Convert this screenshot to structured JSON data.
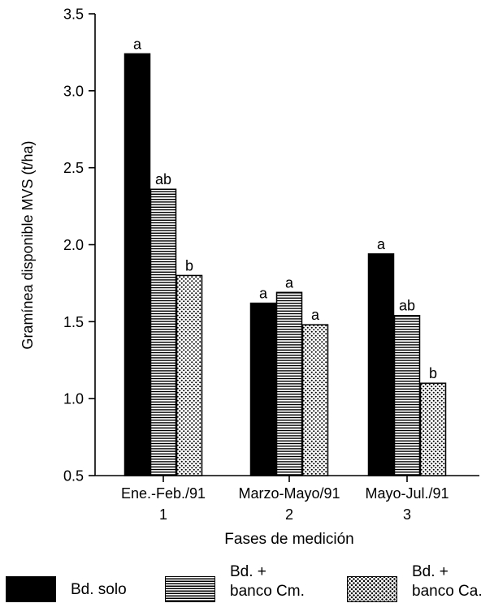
{
  "chart_data": {
    "type": "bar",
    "title": "",
    "ylabel": "Gramínea disponible MVS (t/ha)",
    "xlabel": "Fases de medición",
    "ylim": [
      0.5,
      3.5
    ],
    "yticks": [
      "0.5",
      "1.0",
      "1.5",
      "2.0",
      "2.5",
      "3.0",
      "3.5"
    ],
    "categories": [
      "Ene.-Feb./91",
      "Marzo-Mayo/91",
      "Mayo-Jul./91"
    ],
    "category_numbers": [
      "1",
      "2",
      "3"
    ],
    "series": [
      {
        "name": "Bd. solo",
        "pattern": "solid",
        "values": [
          3.24,
          1.62,
          1.94
        ],
        "letters": [
          "a",
          "a",
          "a"
        ]
      },
      {
        "name": "Bd. + banco Cm.",
        "pattern": "horizontal-lines",
        "values": [
          2.36,
          1.69,
          1.54
        ],
        "letters": [
          "ab",
          "a",
          "ab"
        ]
      },
      {
        "name": "Bd. + banco Ca.",
        "pattern": "dots",
        "values": [
          1.8,
          1.48,
          1.1
        ],
        "letters": [
          "b",
          "a",
          "b"
        ]
      }
    ],
    "grid": false,
    "legend_position": "bottom"
  },
  "legend": {
    "items": [
      {
        "line1": "Bd. solo",
        "line2": ""
      },
      {
        "line1": "Bd. +",
        "line2": "banco Cm."
      },
      {
        "line1": "Bd. +",
        "line2": "banco Ca."
      }
    ]
  }
}
